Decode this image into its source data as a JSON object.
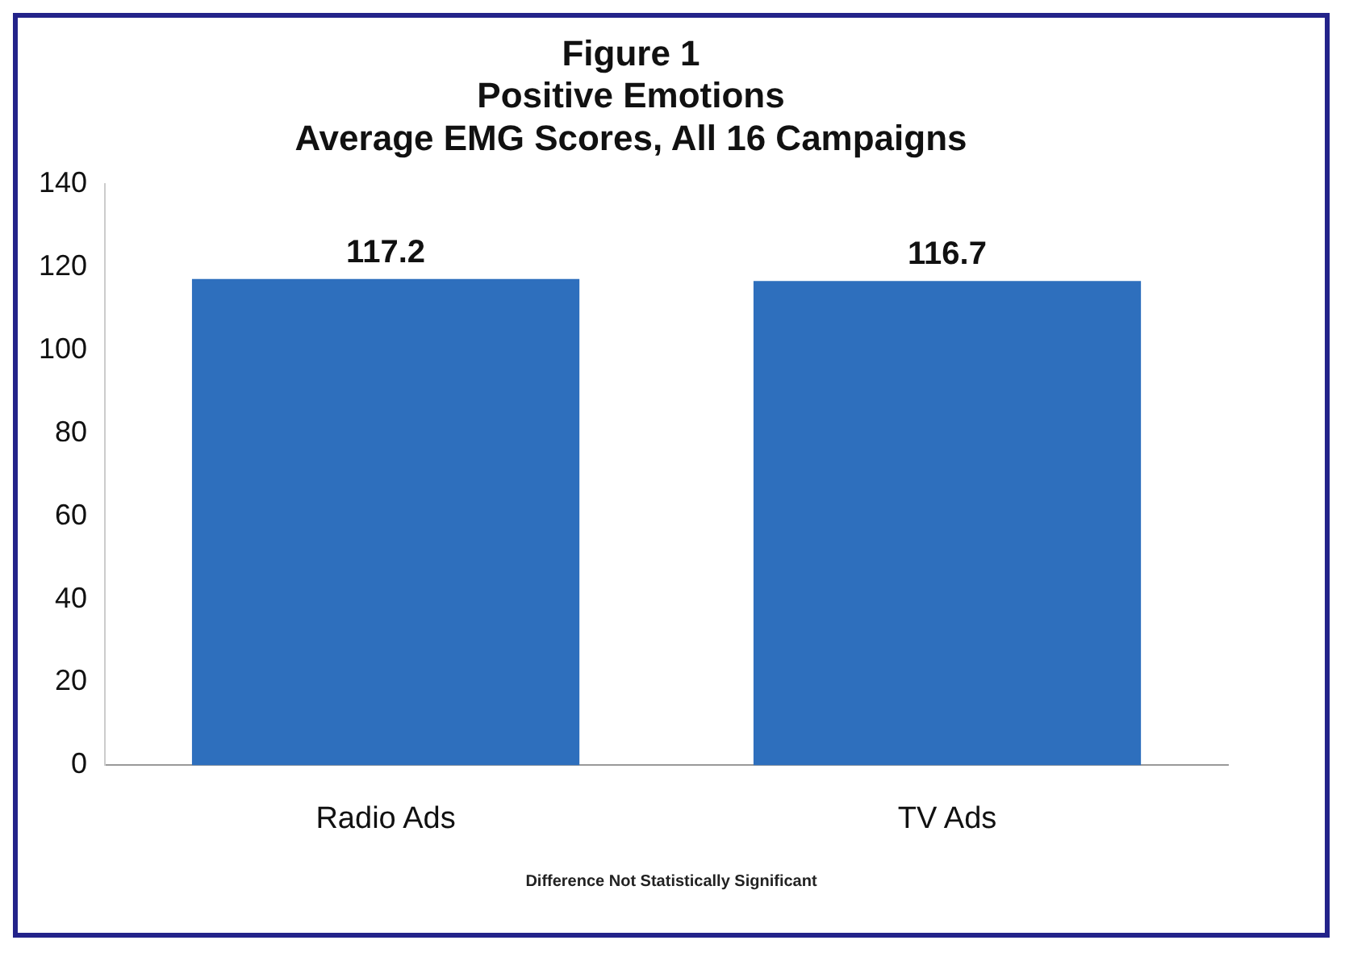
{
  "chart_data": {
    "type": "bar",
    "title": [
      "Figure 1",
      "Positive Emotions",
      "Average EMG Scores, All 16 Campaigns"
    ],
    "categories": [
      "Radio Ads",
      "TV Ads"
    ],
    "values": [
      117.2,
      116.7
    ],
    "color": "#2e6fbd",
    "ylim": [
      0,
      140
    ],
    "yticks": [
      0,
      20,
      40,
      60,
      80,
      100,
      120,
      140
    ],
    "grid": false,
    "legend": false,
    "data_labels": true,
    "annotations": [
      "Difference Not Statistically Significant"
    ]
  }
}
